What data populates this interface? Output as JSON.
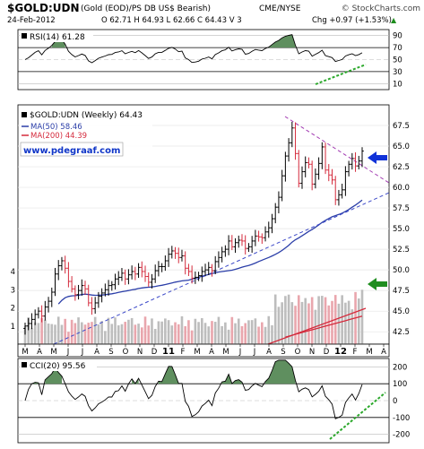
{
  "header": {
    "symbol": "$GOLD:UDN",
    "description": "(Gold (EOD)/PS DB US$ Bearish)",
    "exchange": "CME/NYSE",
    "copyright": "© StockCharts.com",
    "date": "24-Feb-2012",
    "ohlc": "O 62.71  H 64.93  L 62.66  C 64.43  V 3",
    "chg": "Chg +0.97 (+1.53%)",
    "chg_arrow": "▲"
  },
  "rsi": {
    "label": "RSI(14) 61.28",
    "ticks": [
      "90",
      "70",
      "50",
      "30",
      "10"
    ]
  },
  "price": {
    "title": "$GOLD:UDN (Weekly) 64.43",
    "legend_ma50": "MA(50) 58.46",
    "legend_ma200": "MA(200) 44.39",
    "watermark": "www.pdegraaf.com",
    "ticks": [
      "67.5",
      "65.0",
      "62.5",
      "60.0",
      "57.5",
      "55.0",
      "52.5",
      "50.0",
      "47.5",
      "45.0",
      "42.5"
    ],
    "volume_ticks": [
      "4",
      "3",
      "2",
      "1"
    ]
  },
  "xaxis": {
    "months": [
      "M",
      "A",
      "M",
      "J",
      "J",
      "A",
      "S",
      "O",
      "N",
      "D",
      "11",
      "F",
      "M",
      "A",
      "M",
      "J",
      "J",
      "A",
      "S",
      "O",
      "N",
      "D",
      "12",
      "F",
      "M",
      "A"
    ]
  },
  "cci": {
    "label": "CCI(20) 95.56",
    "ticks": [
      "200",
      "100",
      "0",
      "-100",
      "-200"
    ]
  },
  "colors": {
    "up": "#000000",
    "down": "#d42a3c",
    "ma50": "#2b3ea8",
    "ma200": "#d42a3c",
    "trend_up": "#3b48c8",
    "trend_down": "#a23bb2",
    "green_arrow": "#1f8e1f",
    "blue_arrow": "#1032d8",
    "indicator_fill": "#5f8f5f",
    "dotted_green": "#2ba82b",
    "vol_up": "#bdbdbd",
    "vol_down": "#e9a6ad"
  },
  "chart_data": {
    "type": "candlestick",
    "title": "$GOLD:UDN (Weekly) 64.43",
    "ylim": [
      41,
      70
    ],
    "weekly_close": [
      43.2,
      43.5,
      44.0,
      44.6,
      45.0,
      44.4,
      45.5,
      46.2,
      47.3,
      49.5,
      50.5,
      51.1,
      50.2,
      48.6,
      47.7,
      47.0,
      47.5,
      48.1,
      47.7,
      46.0,
      45.3,
      46.0,
      46.8,
      47.2,
      47.6,
      48.1,
      48.2,
      48.9,
      49.1,
      49.6,
      48.9,
      49.4,
      49.8,
      49.5,
      50.3,
      49.8,
      49.2,
      48.5,
      48.9,
      49.9,
      50.4,
      50.4,
      51.1,
      51.9,
      52.3,
      52.0,
      51.5,
      51.7,
      50.2,
      49.8,
      49.0,
      49.1,
      49.3,
      49.8,
      50.0,
      50.3,
      49.9,
      51.0,
      51.5,
      52.2,
      52.5,
      53.5,
      52.8,
      53.3,
      53.6,
      53.5,
      52.6,
      52.8,
      53.5,
      54.1,
      54.0,
      53.9,
      54.6,
      55.1,
      56.2,
      57.6,
      58.8,
      61.4,
      63.8,
      65.4,
      67.2,
      64.1,
      60.5,
      61.9,
      63.0,
      62.8,
      60.4,
      61.6,
      62.9,
      64.9,
      62.1,
      61.5,
      60.9,
      58.5,
      59.1,
      59.7,
      61.9,
      62.8,
      63.5,
      62.6,
      63.2,
      64.4
    ],
    "ma50_last": 58.46,
    "ma200_last": 44.39,
    "volume_last": 3,
    "rsi_last": 61.28,
    "cci_last": 95.56,
    "rsi_ylim": [
      0,
      100
    ],
    "cci_ylim": [
      -250,
      250
    ],
    "x_tick_labels": [
      "M",
      "A",
      "M",
      "J",
      "J",
      "A",
      "S",
      "O",
      "N",
      "D",
      "11",
      "F",
      "M",
      "A",
      "M",
      "J",
      "J",
      "A",
      "S",
      "O",
      "N",
      "D",
      "12",
      "F",
      "M",
      "A"
    ]
  }
}
